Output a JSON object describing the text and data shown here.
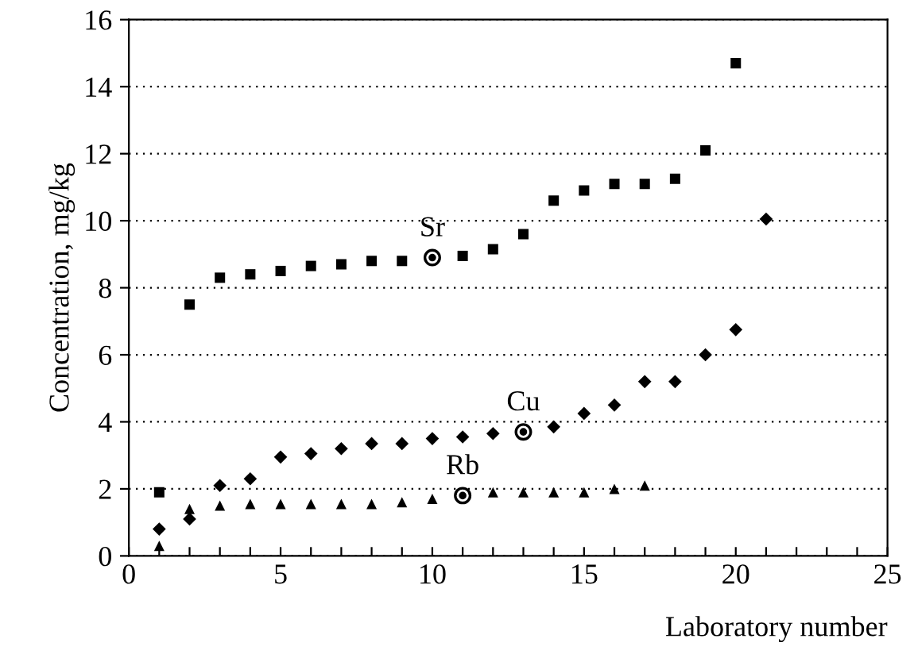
{
  "chart_data": {
    "type": "scatter",
    "xlabel": "Laboratory number",
    "ylabel": "Concentration, mg/kg",
    "xlim": [
      0,
      25
    ],
    "ylim": [
      0,
      16
    ],
    "xticks": [
      0,
      {
        "value": 1,
        "label": null
      },
      {
        "value": 2,
        "label": null
      },
      {
        "value": 3,
        "label": null
      },
      {
        "value": 4,
        "label": null
      },
      5,
      {
        "value": 6,
        "label": null
      },
      {
        "value": 7,
        "label": null
      },
      {
        "value": 8,
        "label": null
      },
      {
        "value": 9,
        "label": null
      },
      10,
      {
        "value": 11,
        "label": null
      },
      {
        "value": 12,
        "label": null
      },
      {
        "value": 13,
        "label": null
      },
      {
        "value": 14,
        "label": null
      },
      15,
      {
        "value": 16,
        "label": null
      },
      {
        "value": 17,
        "label": null
      },
      {
        "value": 18,
        "label": null
      },
      {
        "value": 19,
        "label": null
      },
      20,
      {
        "value": 21,
        "label": null
      },
      {
        "value": 22,
        "label": null
      },
      {
        "value": 23,
        "label": null
      },
      {
        "value": 24,
        "label": null
      },
      25
    ],
    "yticks": [
      0,
      2,
      4,
      6,
      8,
      10,
      12,
      14,
      16
    ],
    "grid": "y",
    "legend": false,
    "series": [
      {
        "color": "#000000",
        "marker": "square",
        "x": [
          1,
          2,
          3,
          4,
          5,
          6,
          7,
          8,
          9,
          11,
          12,
          13,
          14,
          15,
          16,
          17,
          18,
          19,
          20
        ],
        "values": [
          1.9,
          7.5,
          8.3,
          8.4,
          8.5,
          8.65,
          8.7,
          8.8,
          8.8,
          8.95,
          9.15,
          9.6,
          10.6,
          10.9,
          11.1,
          11.1,
          11.25,
          12.1,
          14.7
        ]
      },
      {
        "color": "#000000",
        "marker": "diamond",
        "x": [
          1,
          2,
          3,
          4,
          5,
          6,
          7,
          8,
          9,
          10,
          11,
          12,
          14,
          15,
          16,
          17,
          18,
          19,
          20,
          21
        ],
        "values": [
          0.8,
          1.1,
          2.1,
          2.3,
          2.95,
          3.05,
          3.2,
          3.35,
          3.35,
          3.5,
          3.55,
          3.65,
          3.85,
          4.25,
          4.5,
          5.2,
          5.2,
          6.0,
          6.75,
          10.05
        ]
      },
      {
        "color": "#000000",
        "marker": "triangle",
        "x": [
          1,
          2,
          3,
          4,
          5,
          6,
          7,
          8,
          9,
          10,
          12,
          13,
          14,
          15,
          16,
          17
        ],
        "values": [
          0.3,
          1.4,
          1.5,
          1.55,
          1.55,
          1.55,
          1.55,
          1.55,
          1.6,
          1.7,
          1.9,
          1.9,
          1.9,
          1.9,
          2.0,
          2.1
        ]
      },
      {
        "color": "#000000",
        "marker": "circle",
        "x": [
          10,
          13,
          11
        ],
        "values": [
          8.9,
          3.7,
          1.8
        ]
      }
    ],
    "annotations": [
      {
        "text": "Sr",
        "x": 10,
        "y": 8.9
      },
      {
        "text": "Cu",
        "x": 13,
        "y": 3.7
      },
      {
        "text": "Rb",
        "x": 11,
        "y": 1.8
      }
    ]
  }
}
